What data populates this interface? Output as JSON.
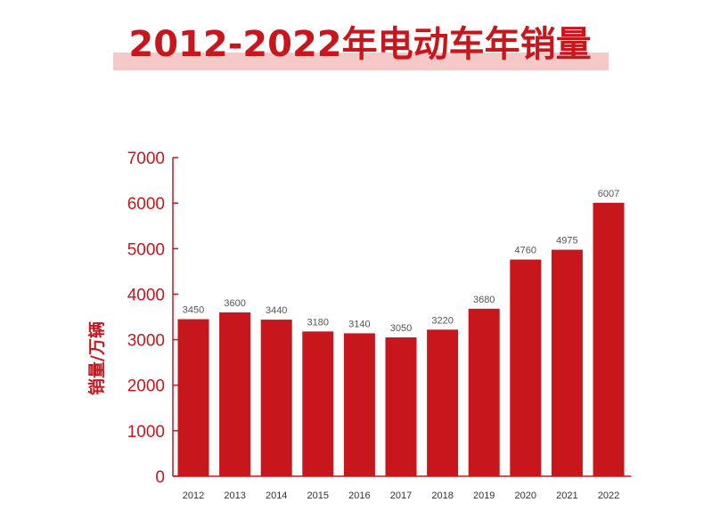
{
  "chart_data": {
    "type": "bar",
    "title": "2012-2022年电动车年销量",
    "xlabel": "",
    "ylabel": "销量/万辆",
    "ylim": [
      0,
      7000
    ],
    "yticks": [
      "0",
      "1000",
      "2000",
      "3000",
      "4000",
      "5000",
      "6000",
      "7000"
    ],
    "categories": [
      "2012",
      "2013",
      "2014",
      "2015",
      "2016",
      "2017",
      "2018",
      "2019",
      "2020",
      "2021",
      "2022"
    ],
    "values": [
      3450,
      3600,
      3440,
      3180,
      3140,
      3050,
      3220,
      3680,
      4760,
      4975,
      6007
    ],
    "value_labels": [
      "3450",
      "3600",
      "3440",
      "3180",
      "3140",
      "3050",
      "3220",
      "3680",
      "4760",
      "4975",
      "6007"
    ],
    "grid": false,
    "legend": "none",
    "colors": {
      "bar": "#c8161d",
      "axis": "#c8161d",
      "tick_label": "#c8161d",
      "value_label": "#555555",
      "category_label": "#333333",
      "title": "#c8161d",
      "title_band": "#f6c9c9"
    }
  }
}
